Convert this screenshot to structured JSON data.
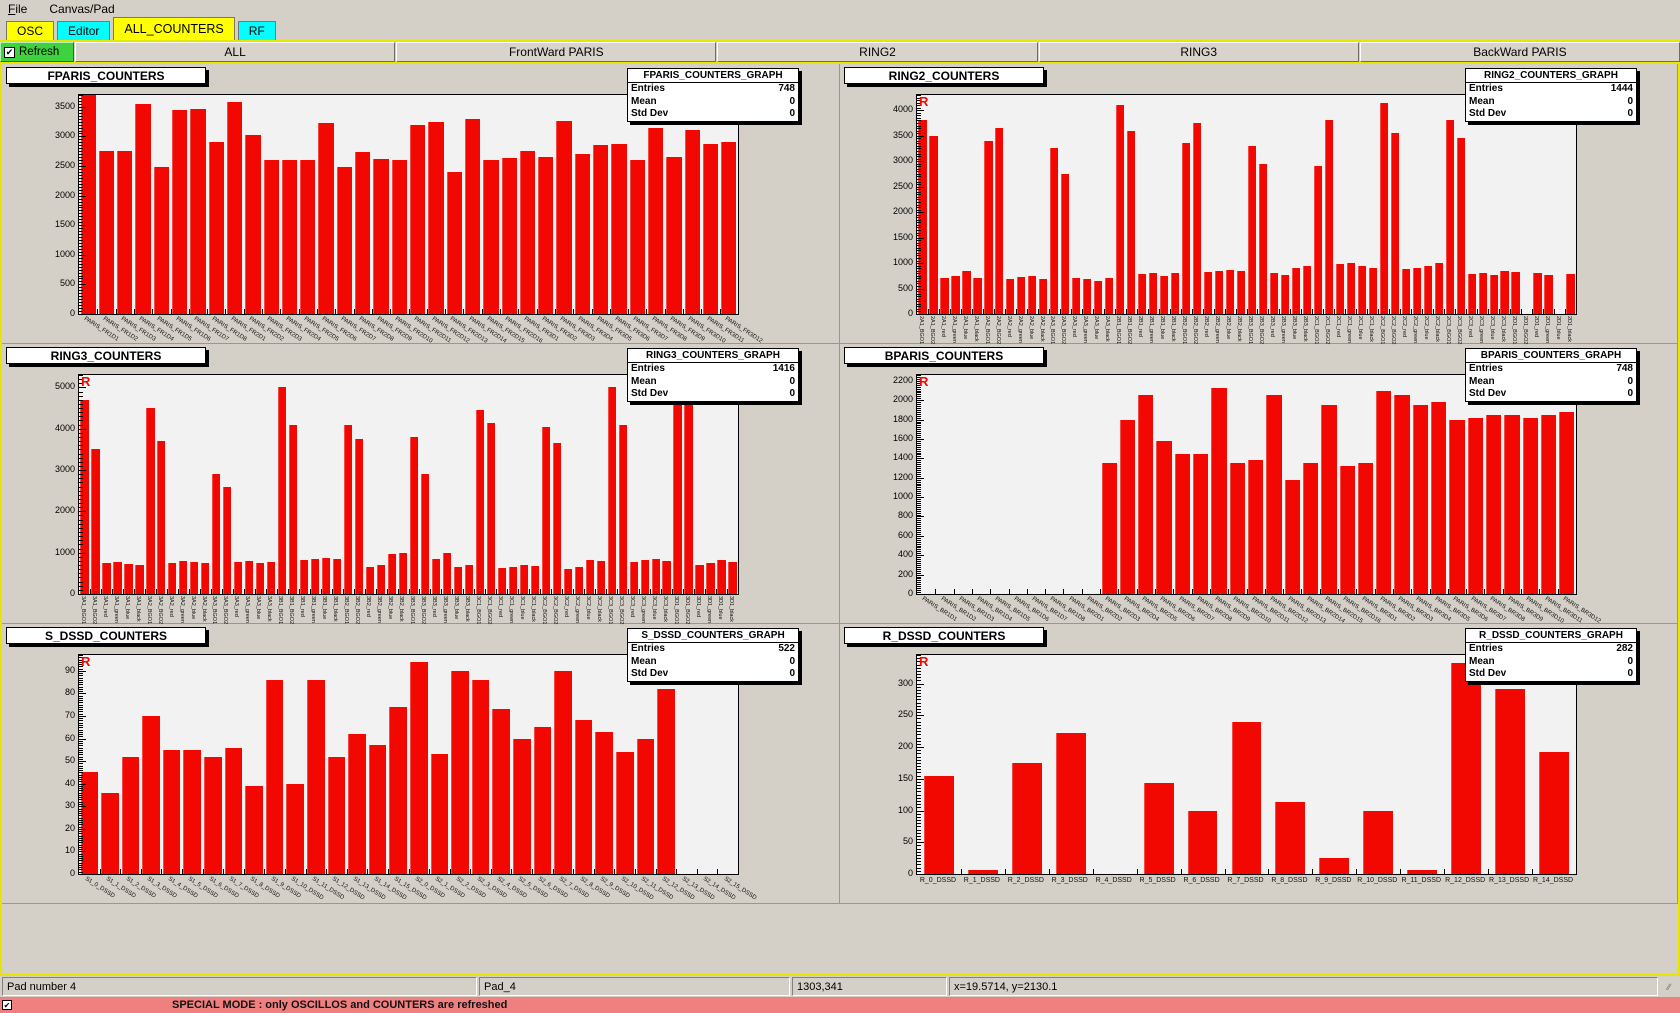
{
  "menu": {
    "items": [
      "File",
      "Canvas/Pad"
    ]
  },
  "tabs": [
    {
      "label": "OSC",
      "color": "#ffff00"
    },
    {
      "label": "Editor",
      "color": "#00ffff"
    },
    {
      "label": "ALL_COUNTERS",
      "color": "#ffff00",
      "active": true
    },
    {
      "label": "RF",
      "color": "#00ffff"
    }
  ],
  "toolbar": {
    "refresh_label": "Refresh",
    "refresh_checked": true,
    "buttons": [
      "ALL",
      "FrontWard PARIS",
      "RING2",
      "RING3",
      "BackWard PARIS"
    ]
  },
  "stats_labels": [
    "Entries",
    "Mean",
    "Std Dev"
  ],
  "statusbar": {
    "cells": [
      "Pad number 4",
      "Pad_4",
      "1303,341",
      "x=19.5714, y=2130.1"
    ]
  },
  "special_mode": {
    "checked": true,
    "text": "SPECIAL MODE : only OSCILLOS and COUNTERS are refreshed"
  },
  "colors": {
    "bar_red": "#f20800",
    "tab_yellow": "#ffff00",
    "tab_cyan": "#00ffff",
    "refresh_green": "#3fd23f",
    "special_pink": "#f08080",
    "canvas_border_yellow": "#e6e600"
  },
  "chart_data": [
    {
      "type": "bar",
      "title": "FPARIS_COUNTERS",
      "corner_mark": "R",
      "label_style": "diag",
      "stats": {
        "title": "FPARIS_COUNTERS_GRAPH",
        "entries": "748",
        "mean": "0",
        "std_dev": "0"
      },
      "ylim": [
        0,
        3700
      ],
      "ytick": 500,
      "ymax_label": 3500,
      "categories": [
        "PARIS_FR1D1",
        "PARIS_FR1D2",
        "PARIS_FR1D3",
        "PARIS_FR1D4",
        "PARIS_FR1D5",
        "PARIS_FR1D6",
        "PARIS_FR1D7",
        "PARIS_FR1D8",
        "PARIS_FR2D1",
        "PARIS_FR2D2",
        "PARIS_FR2D3",
        "PARIS_FR2D4",
        "PARIS_FR2D5",
        "PARIS_FR2D6",
        "PARIS_FR2D7",
        "PARIS_FR2D8",
        "PARIS_FR2D9",
        "PARIS_FR2D10",
        "PARIS_FR2D11",
        "PARIS_FR2D12",
        "PARIS_FR2D13",
        "PARIS_FR2D14",
        "PARIS_FR2D15",
        "PARIS_FR2D16",
        "PARIS_FR3D1",
        "PARIS_FR3D2",
        "PARIS_FR3D3",
        "PARIS_FR3D4",
        "PARIS_FR3D5",
        "PARIS_FR3D6",
        "PARIS_FR3D7",
        "PARIS_FR3D8",
        "PARIS_FR3D9",
        "PARIS_FR3D10",
        "PARIS_FR3D11",
        "PARIS_FR3D12"
      ],
      "values": [
        3700,
        2750,
        2760,
        3540,
        2480,
        3440,
        3460,
        2900,
        3580,
        3030,
        2600,
        2610,
        2600,
        3220,
        2480,
        2740,
        2620,
        2600,
        3190,
        3250,
        2400,
        3300,
        2600,
        2630,
        2760,
        2650,
        3260,
        2700,
        2850,
        2880,
        2600,
        3150,
        2650,
        3110,
        2880,
        2900
      ]
    },
    {
      "type": "bar",
      "title": "RING2_COUNTERS",
      "corner_mark": "R",
      "label_style": "vert",
      "stats": {
        "title": "RING2_COUNTERS_GRAPH",
        "entries": "1444",
        "mean": "0",
        "std_dev": "0"
      },
      "ylim": [
        0,
        4300
      ],
      "ytick": 500,
      "ymax_label": 4000,
      "categories": [
        "2A1_BGO1",
        "2A1_BGO2",
        "2A1_red",
        "2A1_green",
        "2A1_blue",
        "2A1_black",
        "2A2_BGO1",
        "2A2_BGO2",
        "2A2_red",
        "2A2_green",
        "2A2_blue",
        "2A2_black",
        "2A3_BGO1",
        "2A3_BGO2",
        "2A3_red",
        "2A3_green",
        "2A3_blue",
        "2A3_black",
        "2B1_BGO1",
        "2B1_BGO2",
        "2B1_red",
        "2B1_green",
        "2B1_blue",
        "2B1_black",
        "2B2_BGO1",
        "2B2_BGO2",
        "2B2_red",
        "2B2_green",
        "2B2_blue",
        "2B2_black",
        "2B3_BGO1",
        "2B3_BGO2",
        "2B3_red",
        "2B3_green",
        "2B3_blue",
        "2B3_black",
        "2C1_BGO1",
        "2C1_BGO2",
        "2C1_red",
        "2C1_green",
        "2C1_blue",
        "2C1_black",
        "2C2_BGO1",
        "2C2_BGO2",
        "2C2_red",
        "2C2_green",
        "2C2_blue",
        "2C2_black",
        "2C3_BGO1",
        "2C3_BGO2",
        "2C3_red",
        "2C3_green",
        "2C3_blue",
        "2C3_black",
        "2D1_BGO1",
        "2D1_BGO2",
        "2D1_red",
        "2D1_green",
        "2D1_blue",
        "2D1_black"
      ],
      "values": [
        3800,
        3500,
        700,
        750,
        850,
        700,
        3400,
        3650,
        680,
        720,
        750,
        680,
        3250,
        2750,
        700,
        680,
        650,
        700,
        4100,
        3600,
        780,
        800,
        750,
        800,
        3350,
        3750,
        820,
        850,
        870,
        850,
        3300,
        2950,
        800,
        760,
        900,
        950,
        2900,
        3800,
        980,
        1000,
        950,
        900,
        4150,
        3550,
        880,
        900,
        950,
        1000,
        3800,
        3450,
        780,
        800,
        760,
        850,
        820,
        0,
        800,
        760,
        0,
        780
      ]
    },
    {
      "type": "bar",
      "title": "RING3_COUNTERS",
      "corner_mark": "R",
      "label_style": "vert",
      "stats": {
        "title": "RING3_COUNTERS_GRAPH",
        "entries": "1416",
        "mean": "0",
        "std_dev": "0"
      },
      "ylim": [
        0,
        5300
      ],
      "ytick": 1000,
      "ymax_label": 5000,
      "categories": [
        "3A1_BGO1",
        "3A1_BGO2",
        "3A1_red",
        "3A1_green",
        "3A1_blue",
        "3A1_black",
        "3A2_BGO1",
        "3A2_BGO2",
        "3A2_red",
        "3A2_green",
        "3A2_blue",
        "3A2_black",
        "3A3_BGO1",
        "3A3_BGO2",
        "3A3_red",
        "3A3_green",
        "3A3_blue",
        "3A3_black",
        "3B1_BGO1",
        "3B1_BGO2",
        "3B1_red",
        "3B1_green",
        "3B1_blue",
        "3B1_black",
        "3B2_BGO1",
        "3B2_BGO2",
        "3B2_red",
        "3B2_green",
        "3B2_blue",
        "3B2_black",
        "3B3_BGO1",
        "3B3_BGO2",
        "3B3_red",
        "3B3_green",
        "3B3_blue",
        "3B3_black",
        "3C1_BGO1",
        "3C1_BGO2",
        "3C1_red",
        "3C1_green",
        "3C1_blue",
        "3C1_black",
        "3C2_BGO1",
        "3C2_BGO2",
        "3C2_red",
        "3C2_green",
        "3C2_blue",
        "3C2_black",
        "3C3_BGO1",
        "3C3_BGO2",
        "3C3_red",
        "3C3_green",
        "3C3_blue",
        "3C3_black",
        "3D1_BGO1",
        "3D1_BGO2",
        "3D1_red",
        "3D1_green",
        "3D1_blue",
        "3D1_black"
      ],
      "values": [
        4700,
        3500,
        750,
        780,
        720,
        700,
        4500,
        3700,
        760,
        800,
        780,
        760,
        2900,
        2600,
        780,
        800,
        760,
        780,
        5000,
        4100,
        820,
        850,
        880,
        840,
        4100,
        3750,
        650,
        700,
        980,
        1000,
        3800,
        2900,
        850,
        1000,
        650,
        700,
        4450,
        4150,
        620,
        650,
        700,
        680,
        4050,
        3650,
        600,
        650,
        820,
        800,
        5000,
        4100,
        780,
        820,
        850,
        800,
        4900,
        4650,
        700,
        750,
        820,
        780
      ]
    },
    {
      "type": "bar",
      "title": "BPARIS_COUNTERS",
      "corner_mark": "R",
      "label_style": "diag",
      "stats": {
        "title": "BPARIS_COUNTERS_GRAPH",
        "entries": "748",
        "mean": "0",
        "std_dev": "0"
      },
      "ylim": [
        0,
        2260
      ],
      "ytick": 200,
      "ymax_label": 2200,
      "categories": [
        "PARIS_BR1D1",
        "PARIS_BR1D2",
        "PARIS_BR1D3",
        "PARIS_BR1D4",
        "PARIS_BR1D5",
        "PARIS_BR1D6",
        "PARIS_BR1D7",
        "PARIS_BR1D8",
        "PARIS_BR2D1",
        "PARIS_BR2D2",
        "PARIS_BR2D3",
        "PARIS_BR2D4",
        "PARIS_BR2D5",
        "PARIS_BR2D6",
        "PARIS_BR2D7",
        "PARIS_BR2D8",
        "PARIS_BR2D9",
        "PARIS_BR2D10",
        "PARIS_BR2D11",
        "PARIS_BR2D12",
        "PARIS_BR2D13",
        "PARIS_BR2D14",
        "PARIS_BR2D15",
        "PARIS_BR2D16",
        "PARIS_BR3D1",
        "PARIS_BR3D2",
        "PARIS_BR3D3",
        "PARIS_BR3D4",
        "PARIS_BR3D5",
        "PARIS_BR3D6",
        "PARIS_BR3D7",
        "PARIS_BR3D8",
        "PARIS_BR3D9",
        "PARIS_BR3D10",
        "PARIS_BR3D11",
        "PARIS_BR3D12"
      ],
      "values": [
        0,
        0,
        0,
        0,
        0,
        0,
        0,
        0,
        0,
        0,
        1350,
        1800,
        2050,
        1580,
        1450,
        1440,
        2130,
        1350,
        1380,
        2050,
        1180,
        1350,
        1950,
        1320,
        1350,
        2100,
        2050,
        1950,
        1980,
        1800,
        1820,
        1850,
        1850,
        1820,
        1850,
        1880
      ]
    },
    {
      "type": "bar",
      "title": "S_DSSD_COUNTERS",
      "corner_mark": "R",
      "label_style": "diag",
      "stats": {
        "title": "S_DSSD_COUNTERS_GRAPH",
        "entries": "522",
        "mean": "0",
        "std_dev": "0"
      },
      "ylim": [
        0,
        97
      ],
      "ytick": 10,
      "ymax_label": 90,
      "categories": [
        "S1_0_DSSD",
        "S1_1_DSSD",
        "S1_2_DSSD",
        "S1_3_DSSD",
        "S1_4_DSSD",
        "S1_5_DSSD",
        "S1_6_DSSD",
        "S1_7_DSSD",
        "S1_8_DSSD",
        "S1_9_DSSD",
        "S1_10_DSSD",
        "S1_11_DSSD",
        "S1_12_DSSD",
        "S1_13_DSSD",
        "S1_14_DSSD",
        "S1_15_DSSD",
        "S2_0_DSSD",
        "S2_1_DSSD",
        "S2_2_DSSD",
        "S2_3_DSSD",
        "S2_4_DSSD",
        "S2_5_DSSD",
        "S2_6_DSSD",
        "S2_7_DSSD",
        "S2_8_DSSD",
        "S2_9_DSSD",
        "S2_10_DSSD",
        "S2_11_DSSD",
        "S2_12_DSSD",
        "S2_13_DSSD",
        "S2_14_DSSD",
        "S2_15_DSSD"
      ],
      "values": [
        45,
        36,
        52,
        70,
        55,
        55,
        52,
        56,
        39,
        86,
        40,
        86,
        52,
        62,
        57,
        74,
        94,
        53,
        90,
        86,
        73,
        60,
        65,
        90,
        68,
        63,
        54,
        60,
        82,
        0,
        0,
        0
      ]
    },
    {
      "type": "bar",
      "title": "R_DSSD_COUNTERS",
      "corner_mark": "R",
      "label_style": "horiz",
      "stats": {
        "title": "R_DSSD_COUNTERS_GRAPH",
        "entries": "282",
        "mean": "0",
        "std_dev": "0"
      },
      "ylim": [
        0,
        345
      ],
      "ytick": 50,
      "ymax_label": 300,
      "categories": [
        "R_0_DSSD",
        "R_1_DSSD",
        "R_2_DSSD",
        "R_3_DSSD",
        "R_4_DSSD",
        "R_5_DSSD",
        "R_6_DSSD",
        "R_7_DSSD",
        "R_8_DSSD",
        "R_9_DSSD",
        "R_10_DSSD",
        "R_11_DSSD",
        "R_12_DSSD",
        "R_13_DSSD",
        "R_14_DSSD"
      ],
      "values": [
        155,
        7,
        175,
        222,
        0,
        144,
        99,
        239,
        113,
        26,
        99,
        7,
        332,
        292,
        192
      ]
    }
  ]
}
